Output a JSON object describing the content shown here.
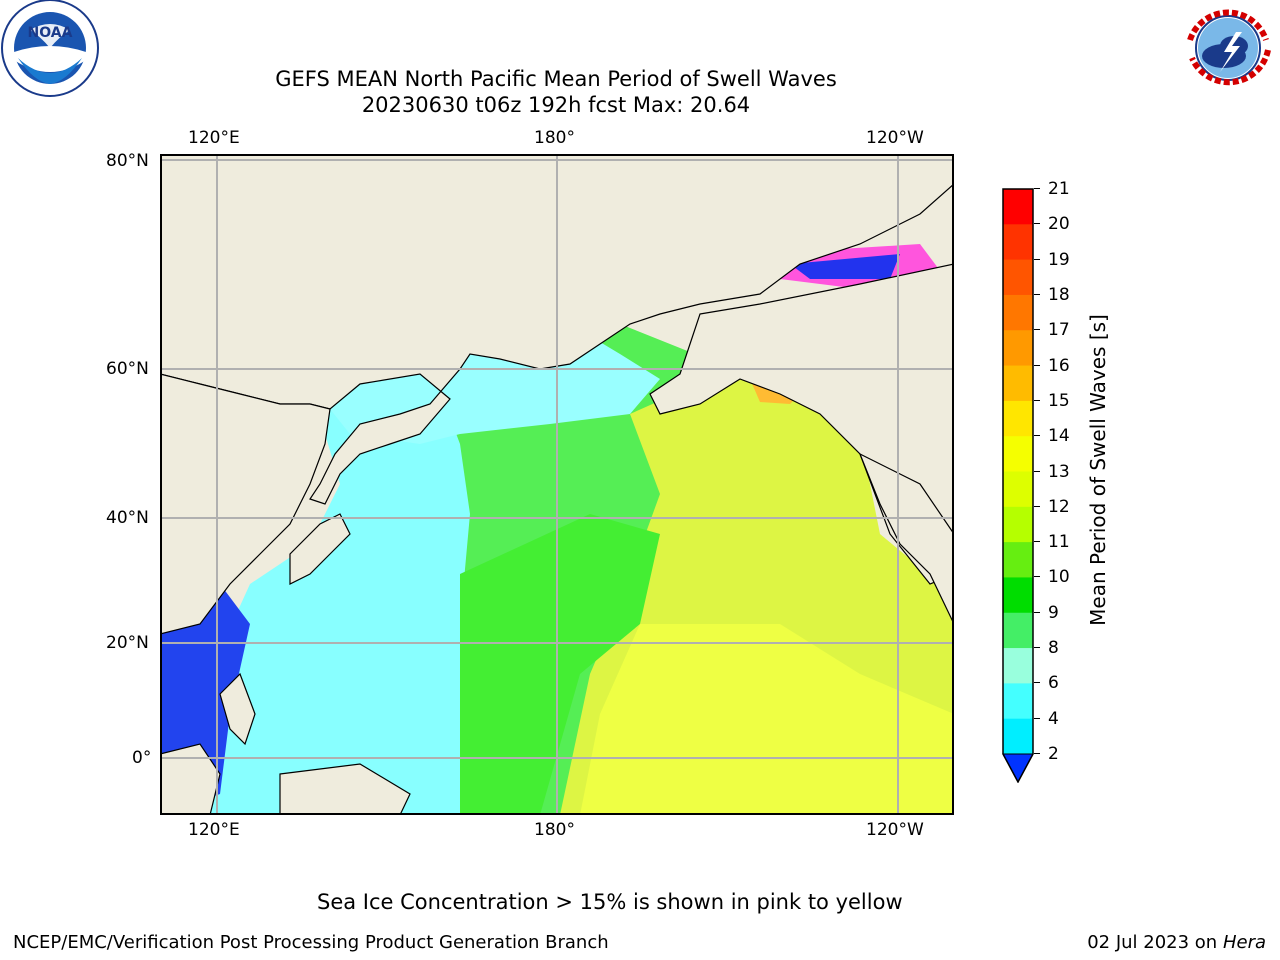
{
  "header": {
    "title_line1": "GEFS MEAN North Pacific Mean Period of Swell Waves",
    "title_line2": "20230630 t06z 192h fcst   Max: 20.64",
    "left_logo": "NOAA",
    "left_logo_ring_text": "NATIONAL OCEANIC AND ATMOSPHERIC ADMINISTRATION  •  U.S. DEPARTMENT OF COMMERCE",
    "right_logo_ring_text": "NATIONAL WEATHER SERVICE"
  },
  "map": {
    "top_lon_labels": [
      "120°E",
      "180°",
      "120°W"
    ],
    "bottom_lon_labels": [
      "120°E",
      "180°",
      "120°W"
    ],
    "lat_labels": [
      "80°N",
      "60°N",
      "40°N",
      "20°N",
      "0°"
    ],
    "colors": {
      "land": "#efecdd",
      "grid": "#b0b0b0",
      "coast": "#000000"
    }
  },
  "colorbar": {
    "label": "Mean Period of Swell Waves [s]",
    "ticks": [
      "21",
      "20",
      "19",
      "18",
      "17",
      "16",
      "15",
      "14",
      "13",
      "12",
      "11",
      "10",
      "9",
      "8",
      "6",
      "4",
      "2"
    ],
    "colors_top_to_bottom": [
      "#ff0000",
      "#ff3300",
      "#ff5500",
      "#ff7700",
      "#ff9900",
      "#ffbb00",
      "#ffe600",
      "#f5ff00",
      "#ddff00",
      "#b5ff00",
      "#66ee11",
      "#00dd00",
      "#44ee66",
      "#99ffdd",
      "#44ffff",
      "#00eeff",
      "#00aaff"
    ],
    "under_color": "#0033ff"
  },
  "footer": {
    "note": "Sea Ice Concentration > 15% is shown in pink to yellow",
    "left": "NCEP/EMC/Verification Post Processing Product Generation Branch",
    "right_prefix": "02 Jul 2023 on ",
    "right_host": "Hera"
  }
}
